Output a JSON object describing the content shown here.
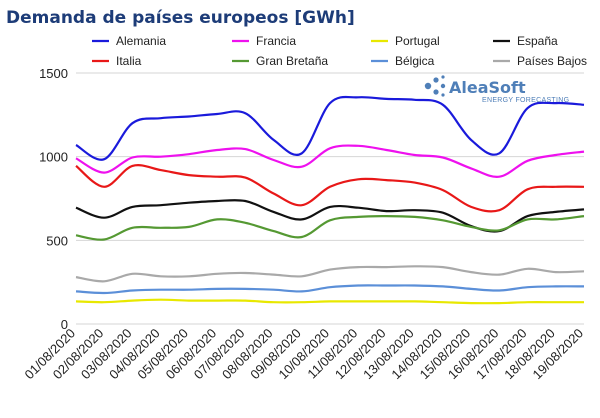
{
  "chart_data": {
    "type": "line",
    "title": "Demanda de países europeos [GWh]",
    "xlabel": "",
    "ylabel": "",
    "ylim": [
      0,
      1500
    ],
    "yticks": [
      0,
      500,
      1000,
      1500
    ],
    "grid": true,
    "legend_position": "top",
    "x": [
      "01/08/2020",
      "02/08/2020",
      "03/08/2020",
      "04/08/2020",
      "05/08/2020",
      "06/08/2020",
      "07/08/2020",
      "08/08/2020",
      "09/08/2020",
      "10/08/2020",
      "11/08/2020",
      "12/08/2020",
      "13/08/2020",
      "14/08/2020",
      "15/08/2020",
      "16/08/2020",
      "17/08/2020",
      "18/08/2020",
      "19/08/2020"
    ],
    "series": [
      {
        "name": "Alemania",
        "color": "#1a1adb",
        "values": [
          1070,
          985,
          1200,
          1230,
          1240,
          1255,
          1260,
          1100,
          1020,
          1320,
          1355,
          1345,
          1340,
          1310,
          1100,
          1020,
          1290,
          1320,
          1310
        ]
      },
      {
        "name": "Francia",
        "color": "#ee11ee",
        "values": [
          990,
          905,
          995,
          1000,
          1015,
          1040,
          1045,
          980,
          940,
          1050,
          1065,
          1040,
          1010,
          995,
          930,
          880,
          975,
          1010,
          1030
        ]
      },
      {
        "name": "Portugal",
        "color": "#e8e800",
        "values": [
          135,
          130,
          140,
          145,
          140,
          140,
          140,
          130,
          130,
          135,
          135,
          135,
          135,
          130,
          125,
          125,
          130,
          130,
          130
        ]
      },
      {
        "name": "España",
        "color": "#111111",
        "values": [
          695,
          635,
          700,
          710,
          725,
          735,
          735,
          670,
          625,
          700,
          695,
          675,
          680,
          665,
          585,
          555,
          645,
          670,
          685
        ]
      },
      {
        "name": "Italia",
        "color": "#e81818",
        "values": [
          945,
          820,
          945,
          920,
          890,
          880,
          875,
          780,
          710,
          820,
          865,
          860,
          845,
          800,
          700,
          680,
          805,
          820,
          820
        ]
      },
      {
        "name": "Gran Bretaña",
        "color": "#559933",
        "values": [
          530,
          505,
          575,
          575,
          580,
          625,
          605,
          555,
          520,
          620,
          640,
          645,
          640,
          620,
          580,
          560,
          625,
          625,
          645
        ]
      },
      {
        "name": "Bélgica",
        "color": "#5b8fd8",
        "values": [
          195,
          185,
          200,
          205,
          205,
          210,
          210,
          205,
          195,
          220,
          230,
          230,
          230,
          225,
          210,
          200,
          220,
          225,
          225
        ]
      },
      {
        "name": "Países Bajos",
        "color": "#a9a9a9",
        "values": [
          280,
          255,
          300,
          285,
          285,
          300,
          305,
          295,
          285,
          325,
          340,
          340,
          345,
          340,
          310,
          295,
          330,
          310,
          315
        ]
      }
    ]
  },
  "logo": {
    "name": "AleaSoft",
    "tagline": "ENERGY FORECASTING"
  }
}
